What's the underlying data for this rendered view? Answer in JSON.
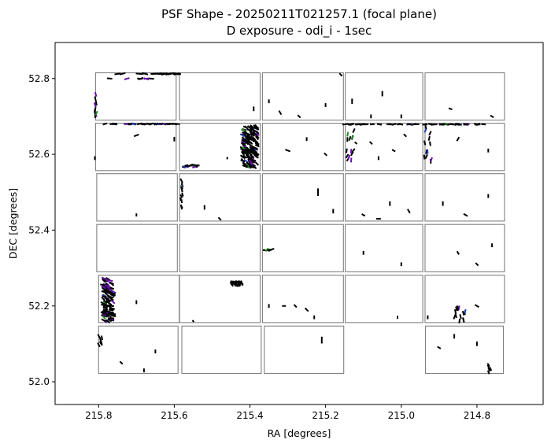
{
  "chart_data": {
    "type": "scatter",
    "title_lines": [
      "PSF Shape - 20250211T021257.1 (focal plane)",
      "D exposure - odi_i - 1sec"
    ],
    "xlabel": "RA [degrees]",
    "ylabel": "DEC [degrees]",
    "xlim": [
      215.915,
      214.625
    ],
    "ylim": [
      51.94,
      52.895
    ],
    "x_ticks": [
      215.8,
      215.6,
      215.4,
      215.2,
      215.0,
      214.8
    ],
    "x_tick_labels": [
      "215.8",
      "215.6",
      "215.4",
      "215.2",
      "215.0",
      "214.8"
    ],
    "y_ticks": [
      52.0,
      52.2,
      52.4,
      52.6,
      52.8
    ],
    "y_tick_labels": [
      "52.0",
      "52.2",
      "52.4",
      "52.6",
      "52.8"
    ],
    "grid": false,
    "ccd_outline_color": "#808080",
    "whisker_colors": [
      "#000000",
      "#6a0dad",
      "#228b22",
      "#1f3fbf"
    ],
    "ccds": [
      {
        "ra": [
          215.808,
          215.595
        ],
        "dec": [
          52.815,
          52.69
        ]
      },
      {
        "ra": [
          215.586,
          215.373
        ],
        "dec": [
          52.815,
          52.69
        ]
      },
      {
        "ra": [
          215.367,
          215.153
        ],
        "dec": [
          52.815,
          52.69
        ]
      },
      {
        "ra": [
          215.148,
          214.943
        ],
        "dec": [
          52.815,
          52.69
        ]
      },
      {
        "ra": [
          214.937,
          214.727
        ],
        "dec": [
          52.815,
          52.69
        ]
      },
      {
        "ra": [
          215.808,
          215.595
        ],
        "dec": [
          52.682,
          52.557
        ]
      },
      {
        "ra": [
          215.586,
          215.373
        ],
        "dec": [
          52.682,
          52.557
        ]
      },
      {
        "ra": [
          215.367,
          215.153
        ],
        "dec": [
          52.682,
          52.557
        ]
      },
      {
        "ra": [
          215.148,
          214.943
        ],
        "dec": [
          52.682,
          52.557
        ]
      },
      {
        "ra": [
          214.937,
          214.727
        ],
        "dec": [
          52.682,
          52.557
        ]
      },
      {
        "ra": [
          215.805,
          215.592
        ],
        "dec": [
          52.549,
          52.424
        ]
      },
      {
        "ra": [
          215.586,
          215.373
        ],
        "dec": [
          52.549,
          52.424
        ]
      },
      {
        "ra": [
          215.367,
          215.153
        ],
        "dec": [
          52.549,
          52.424
        ]
      },
      {
        "ra": [
          215.148,
          214.943
        ],
        "dec": [
          52.549,
          52.424
        ]
      },
      {
        "ra": [
          214.937,
          214.727
        ],
        "dec": [
          52.549,
          52.424
        ]
      },
      {
        "ra": [
          215.805,
          215.592
        ],
        "dec": [
          52.415,
          52.29
        ]
      },
      {
        "ra": [
          215.586,
          215.373
        ],
        "dec": [
          52.415,
          52.29
        ]
      },
      {
        "ra": [
          215.367,
          215.153
        ],
        "dec": [
          52.415,
          52.29
        ]
      },
      {
        "ra": [
          215.148,
          214.943
        ],
        "dec": [
          52.415,
          52.29
        ]
      },
      {
        "ra": [
          214.937,
          214.727
        ],
        "dec": [
          52.415,
          52.29
        ]
      },
      {
        "ra": [
          215.8,
          215.587
        ],
        "dec": [
          52.281,
          52.156
        ]
      },
      {
        "ra": [
          215.586,
          215.373
        ],
        "dec": [
          52.281,
          52.156
        ]
      },
      {
        "ra": [
          215.367,
          215.153
        ],
        "dec": [
          52.281,
          52.156
        ]
      },
      {
        "ra": [
          215.148,
          214.943
        ],
        "dec": [
          52.281,
          52.156
        ]
      },
      {
        "ra": [
          214.937,
          214.727
        ],
        "dec": [
          52.281,
          52.156
        ]
      },
      {
        "ra": [
          215.8,
          215.59
        ],
        "dec": [
          52.147,
          52.022
        ]
      },
      {
        "ra": [
          215.58,
          215.37
        ],
        "dec": [
          52.147,
          52.022
        ]
      },
      {
        "ra": [
          215.362,
          215.152
        ],
        "dec": [
          52.147,
          52.022
        ]
      },
      {
        "ra": [
          214.936,
          214.73
        ],
        "dec": [
          52.147,
          52.022
        ]
      }
    ],
    "whisker_clusters": [
      {
        "ra": [
          215.75,
          215.58
        ],
        "dec": [
          52.813,
          52.812
        ],
        "n": 22,
        "angle": 0,
        "len": 0.016
      },
      {
        "ra": [
          215.78,
          215.66
        ],
        "dec": [
          52.8,
          52.799
        ],
        "n": 7,
        "angle": 0,
        "len": 0.014
      },
      {
        "ra": [
          215.81,
          215.805
        ],
        "dec": [
          52.76,
          52.7
        ],
        "n": 9,
        "angle": 90,
        "len": 0.012
      },
      {
        "ra": [
          215.8,
          215.59
        ],
        "dec": [
          52.68,
          52.68
        ],
        "n": 40,
        "angle": 0,
        "len": 0.012
      },
      {
        "ra": [
          215.15,
          214.78
        ],
        "dec": [
          52.679,
          52.679
        ],
        "n": 55,
        "angle": 0,
        "len": 0.012
      },
      {
        "ra": [
          215.42,
          215.38
        ],
        "dec": [
          52.675,
          52.565
        ],
        "n": 180,
        "angle": 35,
        "len": 0.012
      },
      {
        "ra": [
          215.575,
          215.535
        ],
        "dec": [
          52.572,
          52.566
        ],
        "n": 16,
        "angle": 0,
        "len": 0.01
      },
      {
        "ra": [
          215.145,
          215.125
        ],
        "dec": [
          52.675,
          52.565
        ],
        "n": 14,
        "angle": 110,
        "len": 0.012
      },
      {
        "ra": [
          214.94,
          214.92
        ],
        "dec": [
          52.675,
          52.57
        ],
        "n": 12,
        "angle": 95,
        "len": 0.012
      },
      {
        "ra": [
          215.79,
          215.76
        ],
        "dec": [
          52.276,
          52.155
        ],
        "n": 120,
        "angle": 25,
        "len": 0.012
      },
      {
        "ra": [
          215.45,
          215.42
        ],
        "dec": [
          52.264,
          52.254
        ],
        "n": 40,
        "angle": 60,
        "len": 0.008
      },
      {
        "ra": [
          215.365,
          215.34
        ],
        "dec": [
          52.35,
          52.346
        ],
        "n": 8,
        "angle": 0,
        "len": 0.01
      },
      {
        "ra": [
          214.86,
          214.83
        ],
        "dec": [
          52.2,
          52.16
        ],
        "n": 14,
        "angle": 90,
        "len": 0.012
      },
      {
        "ra": [
          215.8,
          215.79
        ],
        "dec": [
          52.12,
          52.09
        ],
        "n": 6,
        "angle": 70,
        "len": 0.012
      },
      {
        "ra": [
          215.584,
          215.578
        ],
        "dec": [
          52.54,
          52.44
        ],
        "n": 14,
        "angle": 80,
        "len": 0.01
      },
      {
        "ra": [
          214.77,
          214.76
        ],
        "dec": [
          52.045,
          52.025
        ],
        "n": 5,
        "angle": 60,
        "len": 0.01
      }
    ],
    "whisker_singles": [
      [
        215.7,
        52.65,
        0.014,
        160
      ],
      [
        215.6,
        52.64,
        0.012,
        90
      ],
      [
        215.81,
        52.59,
        0.01,
        90
      ],
      [
        215.39,
        52.72,
        0.012,
        90
      ],
      [
        215.35,
        52.74,
        0.01,
        90
      ],
      [
        215.32,
        52.71,
        0.012,
        60
      ],
      [
        215.27,
        52.7,
        0.01,
        45
      ],
      [
        215.2,
        52.73,
        0.01,
        90
      ],
      [
        215.16,
        52.81,
        0.01,
        45
      ],
      [
        215.13,
        52.74,
        0.014,
        90
      ],
      [
        215.08,
        52.7,
        0.01,
        90
      ],
      [
        215.05,
        52.76,
        0.014,
        90
      ],
      [
        215.0,
        52.7,
        0.01,
        90
      ],
      [
        214.87,
        52.72,
        0.01,
        20
      ],
      [
        214.76,
        52.7,
        0.01,
        30
      ],
      [
        215.3,
        52.61,
        0.014,
        20
      ],
      [
        215.25,
        52.64,
        0.01,
        90
      ],
      [
        215.2,
        52.6,
        0.01,
        45
      ],
      [
        215.08,
        52.63,
        0.01,
        45
      ],
      [
        215.06,
        52.59,
        0.01,
        90
      ],
      [
        215.02,
        52.61,
        0.01,
        30
      ],
      [
        214.99,
        52.65,
        0.01,
        45
      ],
      [
        214.85,
        52.64,
        0.012,
        120
      ],
      [
        214.77,
        52.61,
        0.01,
        90
      ],
      [
        215.22,
        52.5,
        0.02,
        90
      ],
      [
        215.18,
        52.45,
        0.012,
        90
      ],
      [
        215.1,
        52.44,
        0.01,
        30
      ],
      [
        215.06,
        52.43,
        0.012,
        0
      ],
      [
        215.03,
        52.47,
        0.012,
        90
      ],
      [
        214.98,
        52.45,
        0.012,
        60
      ],
      [
        214.89,
        52.47,
        0.012,
        90
      ],
      [
        214.83,
        52.44,
        0.012,
        30
      ],
      [
        214.77,
        52.49,
        0.01,
        90
      ],
      [
        215.52,
        52.46,
        0.012,
        90
      ],
      [
        215.48,
        52.43,
        0.01,
        45
      ],
      [
        215.7,
        52.44,
        0.008,
        90
      ],
      [
        215.1,
        52.34,
        0.01,
        90
      ],
      [
        215.0,
        52.31,
        0.01,
        90
      ],
      [
        214.85,
        52.34,
        0.01,
        60
      ],
      [
        214.8,
        52.31,
        0.01,
        45
      ],
      [
        214.76,
        52.36,
        0.01,
        90
      ],
      [
        215.25,
        52.19,
        0.012,
        45
      ],
      [
        215.31,
        52.2,
        0.01,
        0
      ],
      [
        215.23,
        52.17,
        0.01,
        90
      ],
      [
        215.01,
        52.17,
        0.008,
        90
      ],
      [
        214.8,
        52.2,
        0.012,
        30
      ],
      [
        214.93,
        52.17,
        0.01,
        90
      ],
      [
        215.7,
        52.21,
        0.01,
        90
      ],
      [
        215.65,
        52.08,
        0.01,
        90
      ],
      [
        215.74,
        52.05,
        0.01,
        45
      ],
      [
        215.68,
        52.03,
        0.01,
        90
      ],
      [
        215.21,
        52.11,
        0.018,
        90
      ],
      [
        214.86,
        52.12,
        0.012,
        90
      ],
      [
        214.8,
        52.1,
        0.012,
        90
      ],
      [
        214.9,
        52.09,
        0.01,
        30
      ],
      [
        215.35,
        52.2,
        0.01,
        90
      ],
      [
        215.28,
        52.2,
        0.01,
        45
      ],
      [
        215.55,
        52.16,
        0.006,
        45
      ],
      [
        215.46,
        52.59,
        0.006,
        90
      ],
      [
        215.12,
        52.63,
        0.008,
        45
      ]
    ]
  }
}
